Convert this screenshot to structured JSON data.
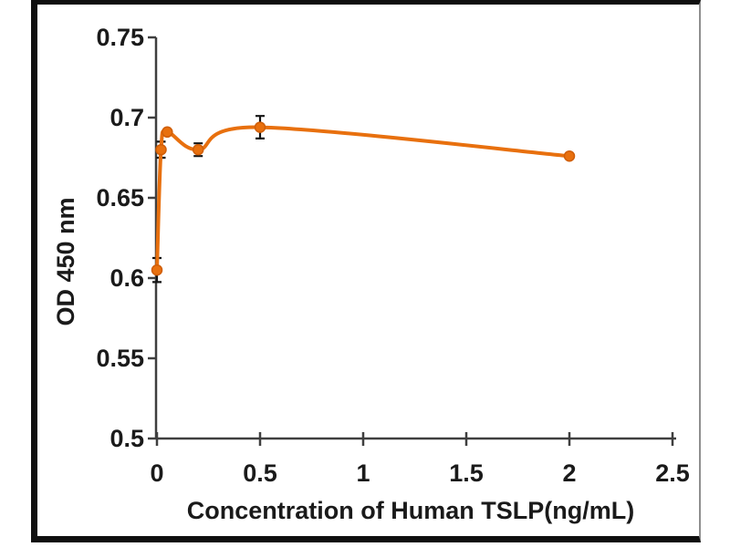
{
  "chart_data": {
    "type": "line",
    "title": "",
    "xlabel": "Concentration of Human TSLP(ng/mL)",
    "ylabel": "OD 450 nm",
    "x": [
      0,
      0.02,
      0.05,
      0.2,
      0.5,
      2
    ],
    "y": [
      0.605,
      0.68,
      0.691,
      0.68,
      0.694,
      0.676
    ],
    "yerr": [
      0.0075,
      0.005,
      0,
      0.004,
      0.007,
      0
    ],
    "x_tick_values": [
      0,
      0.5,
      1,
      1.5,
      2,
      2.5
    ],
    "x_tick_labels": [
      "0",
      "0.5",
      "1",
      "1.5",
      "2",
      "2.5"
    ],
    "y_tick_values": [
      0.5,
      0.55,
      0.6,
      0.65,
      0.7,
      0.75
    ],
    "y_tick_labels": [
      "0.5",
      "0.55",
      "0.6",
      "0.65",
      "0.7",
      "0.75"
    ],
    "xlim": [
      0,
      2.5
    ],
    "ylim": [
      0.5,
      0.75
    ],
    "smooth": true,
    "grid": false,
    "legend_position": "none",
    "line_color": "#e8700e",
    "marker_color": "#e8700e",
    "marker_edge_color": "#d05e08",
    "errorbar_color": "#141414",
    "axis_color": "#3f3f3f",
    "text_color": "#1a1a1a",
    "frame_border_color": "#0f0f0f",
    "frame_right_border_color": "#8f8f8f",
    "background_color": "#ffffff"
  }
}
